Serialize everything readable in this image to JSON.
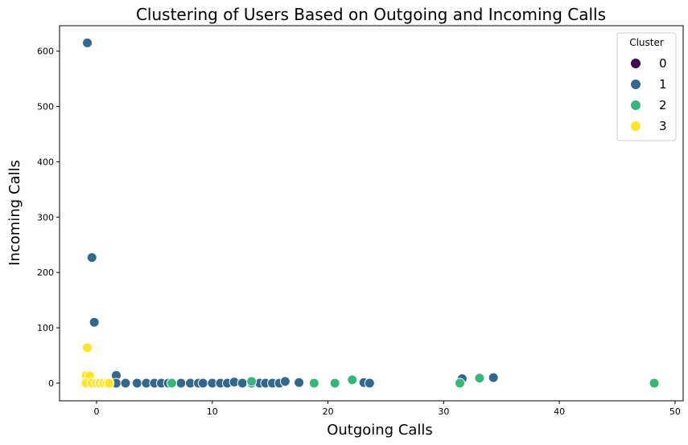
{
  "chart_data": {
    "type": "scatter",
    "title": "Clustering of Users Based on Outgoing and Incoming Calls",
    "xlabel": "Outgoing Calls",
    "ylabel": "Incoming Calls",
    "xlim": [
      -3.2,
      50.7
    ],
    "ylim": [
      -32,
      646
    ],
    "xticks": [
      0,
      10,
      20,
      30,
      40,
      50
    ],
    "yticks": [
      0,
      100,
      200,
      300,
      400,
      500,
      600
    ],
    "grid": false,
    "legend": {
      "title": "Cluster",
      "position": "top-right"
    },
    "series": [
      {
        "name": "0",
        "color": "#440154",
        "points": []
      },
      {
        "name": "1",
        "color": "#31688e",
        "points": [
          [
            -0.8,
            615
          ],
          [
            -0.4,
            227
          ],
          [
            -0.2,
            110
          ],
          [
            1.7,
            14
          ],
          [
            1.7,
            0
          ],
          [
            2.5,
            0
          ],
          [
            3.5,
            0
          ],
          [
            4.3,
            0
          ],
          [
            5.0,
            0
          ],
          [
            5.6,
            0
          ],
          [
            6.2,
            0
          ],
          [
            7.3,
            0
          ],
          [
            8.1,
            0
          ],
          [
            8.8,
            0
          ],
          [
            9.2,
            0
          ],
          [
            10.0,
            0
          ],
          [
            10.7,
            0
          ],
          [
            11.3,
            0
          ],
          [
            11.9,
            2
          ],
          [
            12.6,
            0
          ],
          [
            13.4,
            0
          ],
          [
            14.1,
            0
          ],
          [
            14.6,
            0
          ],
          [
            15.2,
            0
          ],
          [
            15.8,
            0
          ],
          [
            16.3,
            3
          ],
          [
            17.5,
            1
          ],
          [
            23.1,
            1
          ],
          [
            23.6,
            0
          ],
          [
            31.6,
            8
          ],
          [
            34.3,
            10
          ]
        ]
      },
      {
        "name": "2",
        "color": "#35b779",
        "points": [
          [
            6.5,
            0
          ],
          [
            13.4,
            3
          ],
          [
            18.8,
            0
          ],
          [
            20.6,
            0
          ],
          [
            22.1,
            6
          ],
          [
            31.4,
            0
          ],
          [
            33.1,
            9
          ],
          [
            48.2,
            0
          ]
        ]
      },
      {
        "name": "3",
        "color": "#fde725",
        "points": [
          [
            -0.8,
            64
          ],
          [
            -0.9,
            14
          ],
          [
            -0.6,
            13
          ],
          [
            -0.9,
            0
          ],
          [
            -0.4,
            0
          ],
          [
            0.0,
            0
          ],
          [
            0.3,
            0
          ],
          [
            0.6,
            0
          ],
          [
            0.9,
            0
          ],
          [
            1.1,
            0
          ]
        ]
      }
    ]
  }
}
